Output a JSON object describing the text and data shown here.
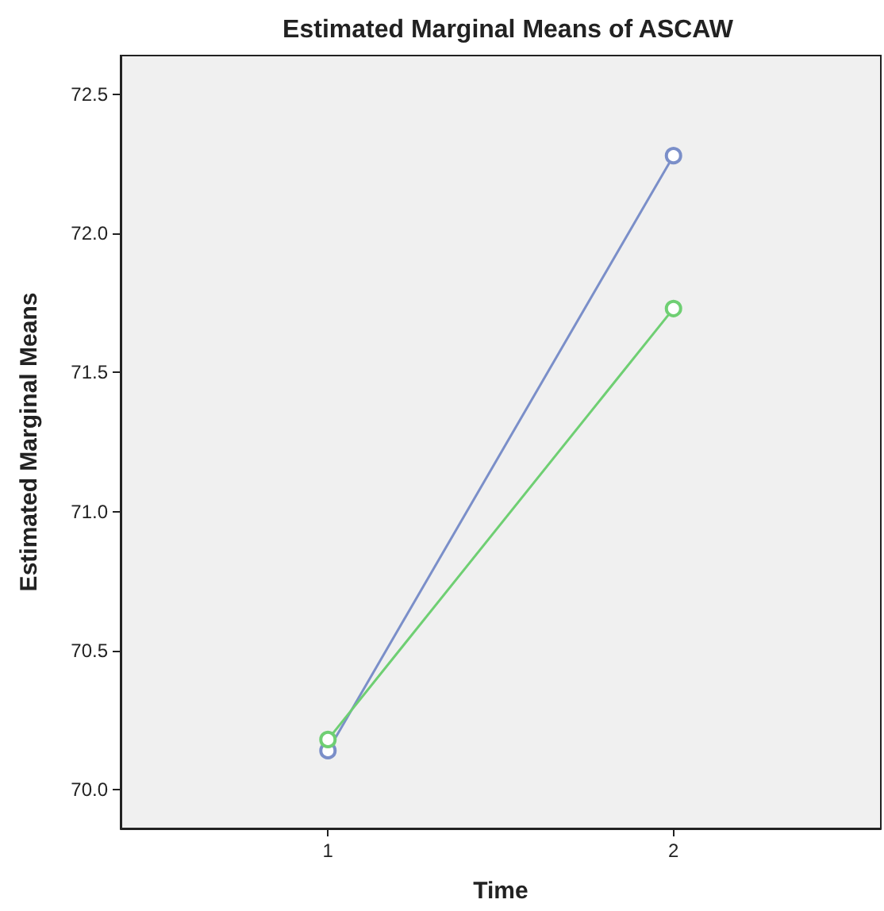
{
  "chart_data": {
    "type": "line",
    "title": "Estimated Marginal Means of ASCAW",
    "xlabel": "Time",
    "ylabel": "Estimated Marginal Means",
    "x": [
      1,
      2
    ],
    "xlim": [
      0.4,
      2.6
    ],
    "xticks": [
      1,
      2
    ],
    "ylim": [
      69.86,
      72.64
    ],
    "yticks": [
      {
        "value": 70,
        "label": "70.0"
      },
      {
        "value": 70.5,
        "label": "70.5"
      },
      {
        "value": 71,
        "label": "71.0"
      },
      {
        "value": 71.5,
        "label": "71.5"
      },
      {
        "value": 72,
        "label": "72.0"
      },
      {
        "value": 72.5,
        "label": "72.5"
      }
    ],
    "series": [
      {
        "color": "#7b8fc9",
        "values": [
          70.14,
          72.28
        ]
      },
      {
        "color": "#6fcf73",
        "values": [
          70.18,
          71.73
        ]
      }
    ],
    "grid": false,
    "marker": "circle",
    "line_style": "solid"
  }
}
